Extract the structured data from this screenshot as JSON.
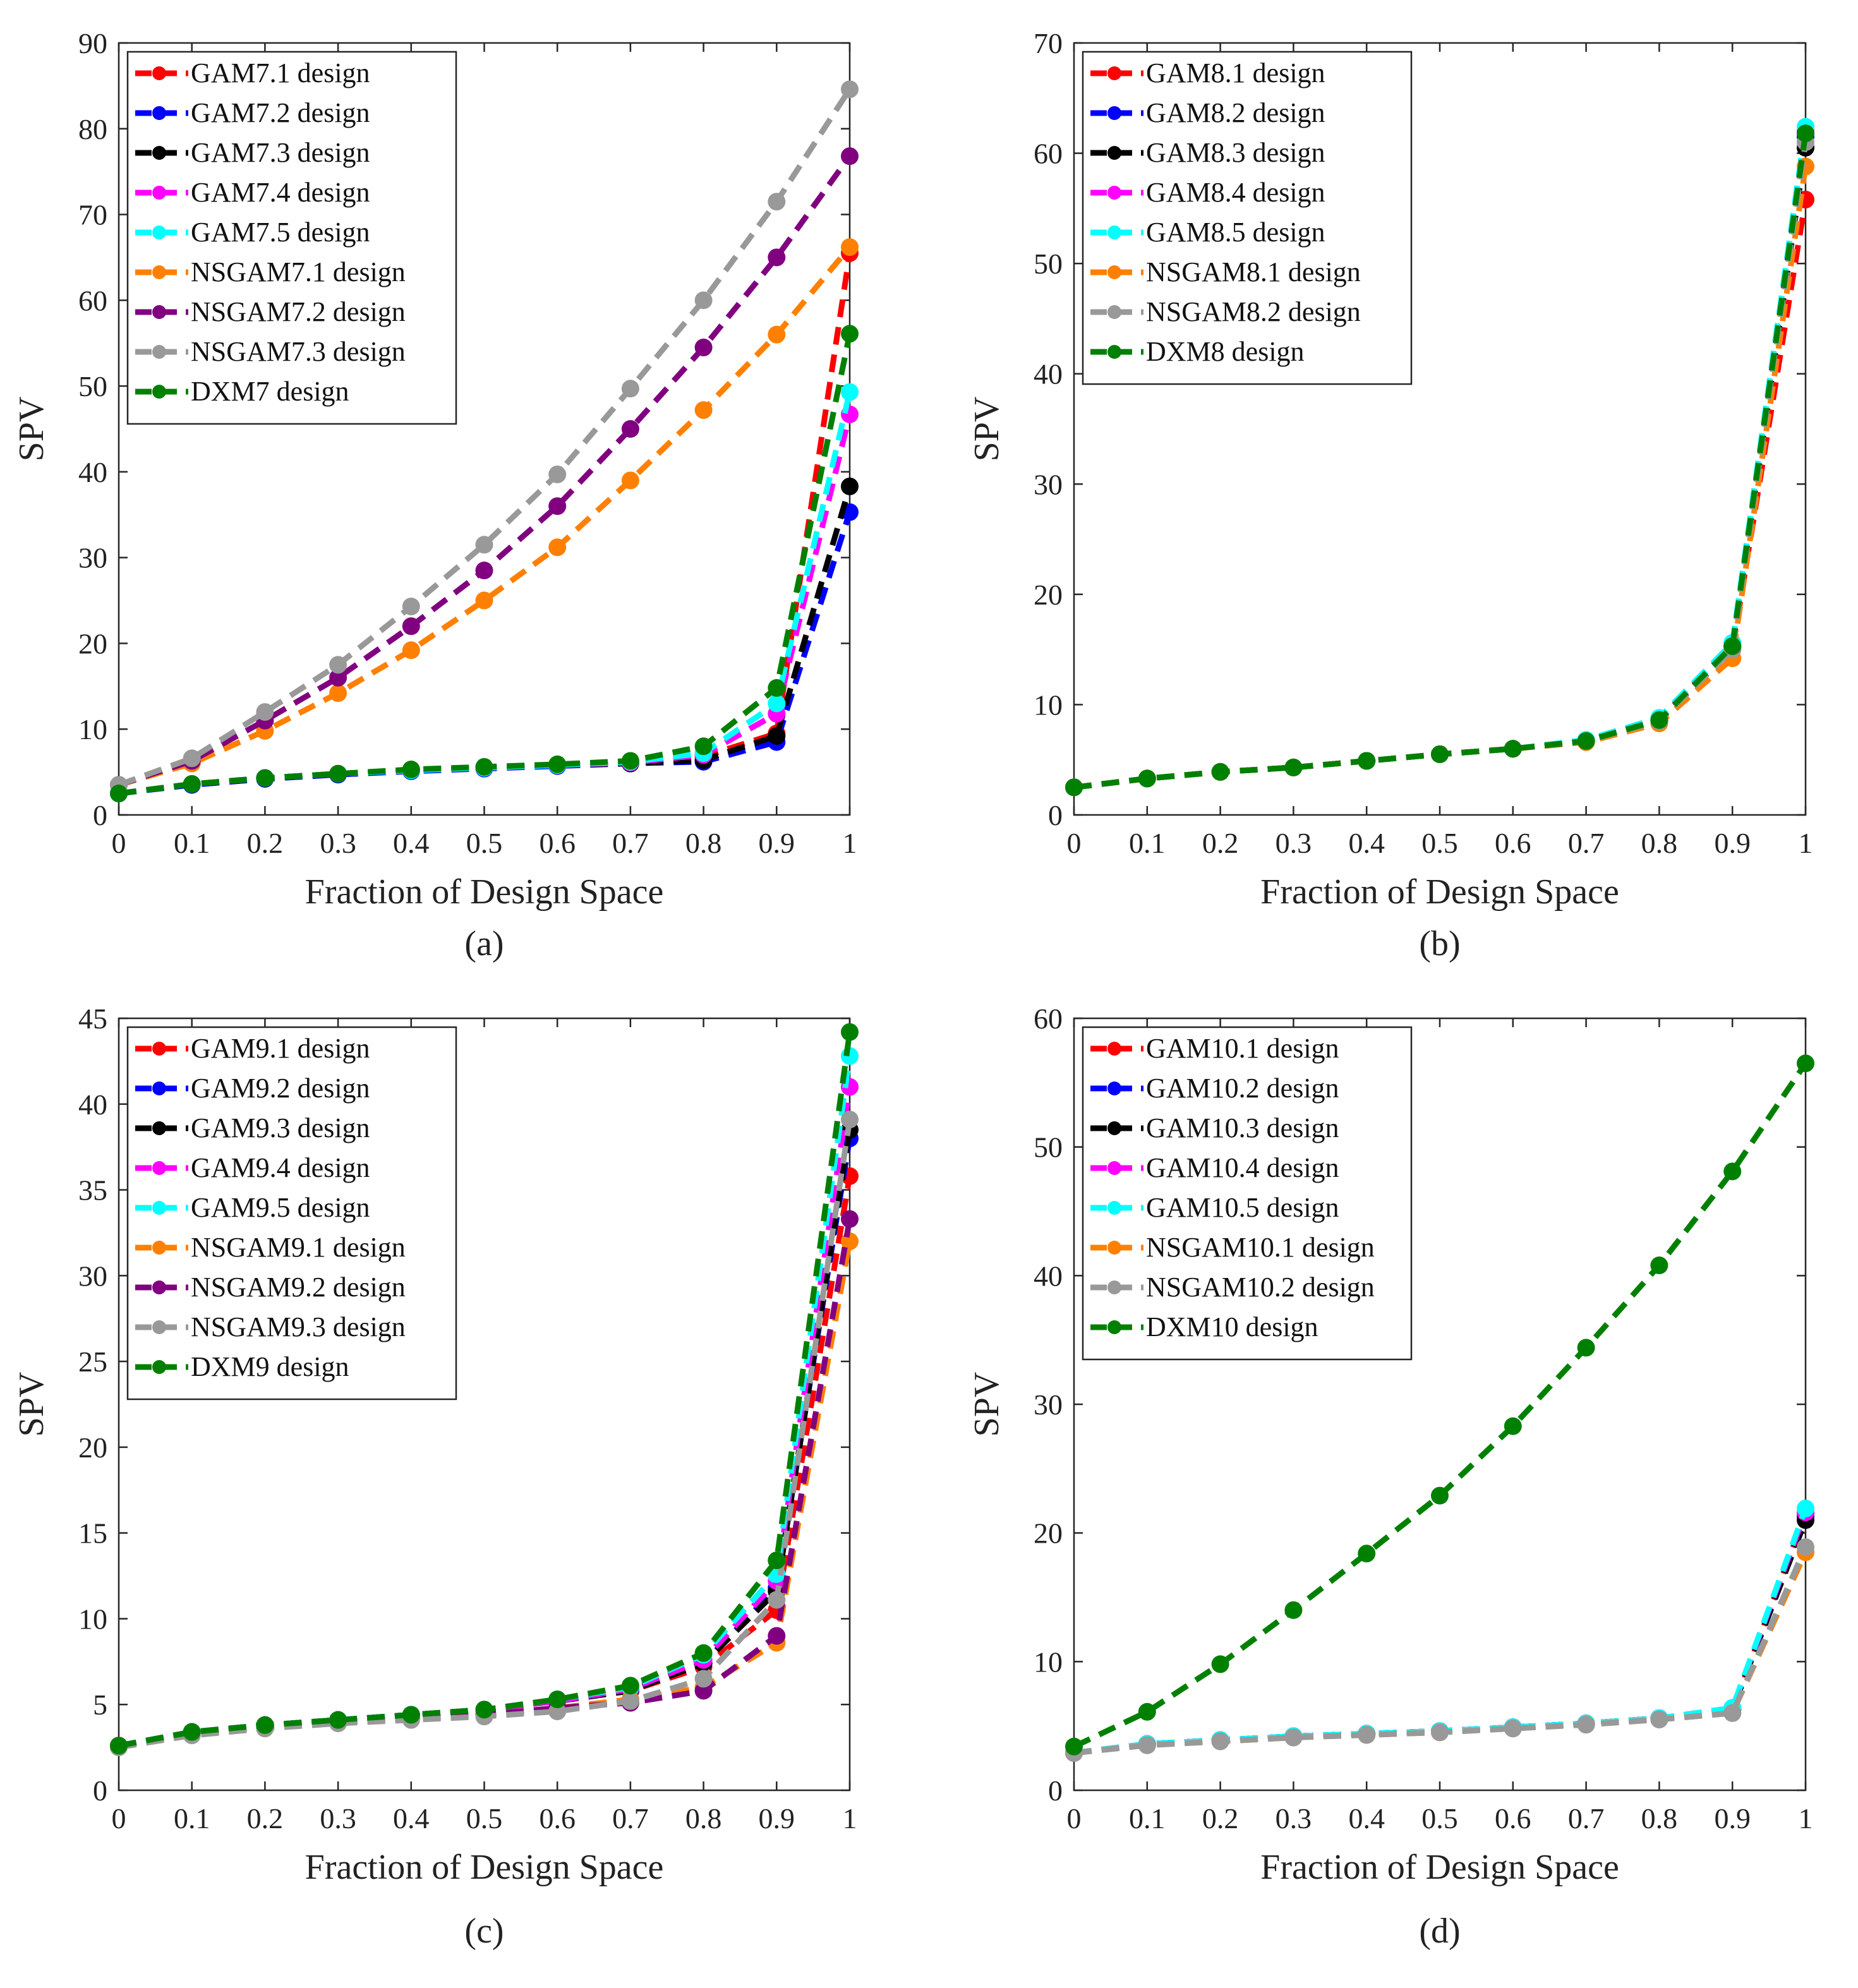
{
  "figure": {
    "domain_note": "Four SPV curves versus fraction of design space"
  },
  "chart_data": [
    {
      "type": "line",
      "caption": "(a)",
      "xlabel": "Fraction of Design Space",
      "ylabel": "SPV",
      "xlim": [
        0,
        1
      ],
      "ylim": [
        0,
        90
      ],
      "xticks": [
        0,
        0.1,
        0.2,
        0.3,
        0.4,
        0.5,
        0.6,
        0.7,
        0.8,
        0.9,
        1
      ],
      "xtick_labels": [
        "0",
        "0.1",
        "0.2",
        "0.3",
        "0.4",
        "0.5",
        "0.6",
        "0.7",
        "0.8",
        "0.9",
        "1"
      ],
      "yticks": [
        0,
        10,
        20,
        30,
        40,
        50,
        60,
        70,
        80,
        90
      ],
      "ytick_labels": [
        "0",
        "10",
        "20",
        "30",
        "40",
        "50",
        "60",
        "70",
        "80",
        "90"
      ],
      "legend_position": "top-left",
      "x": [
        0,
        0.1,
        0.2,
        0.3,
        0.4,
        0.5,
        0.6,
        0.7,
        0.8,
        0.9,
        1
      ],
      "series": [
        {
          "name": "GAM7.1 design",
          "color": "#ff0000",
          "values": [
            2.5,
            3.6,
            4.3,
            4.8,
            5.2,
            5.5,
            5.8,
            6.0,
            6.8,
            9.5,
            65.5
          ]
        },
        {
          "name": "GAM7.2 design",
          "color": "#0000ff",
          "values": [
            2.5,
            3.5,
            4.2,
            4.7,
            5.1,
            5.4,
            5.7,
            6.0,
            6.2,
            8.5,
            35.3
          ]
        },
        {
          "name": "GAM7.3 design",
          "color": "#000000",
          "values": [
            2.5,
            3.6,
            4.3,
            4.8,
            5.2,
            5.5,
            5.8,
            6.0,
            6.4,
            9.2,
            38.3
          ]
        },
        {
          "name": "GAM7.4 design",
          "color": "#ff00ff",
          "values": [
            2.5,
            3.6,
            4.3,
            4.8,
            5.2,
            5.5,
            5.8,
            6.1,
            7.0,
            11.8,
            46.7
          ]
        },
        {
          "name": "GAM7.5 design",
          "color": "#00ffff",
          "values": [
            2.5,
            3.6,
            4.3,
            4.8,
            5.2,
            5.5,
            5.8,
            6.2,
            7.2,
            13.0,
            49.3
          ]
        },
        {
          "name": "NSGAM7.1 design",
          "color": "#ff8000",
          "values": [
            3.5,
            6.0,
            9.8,
            14.2,
            19.2,
            25.0,
            31.2,
            39.0,
            47.2,
            56.0,
            66.2
          ]
        },
        {
          "name": "NSGAM7.2 design",
          "color": "#800080",
          "values": [
            3.5,
            6.3,
            11.0,
            16.0,
            22.0,
            28.5,
            36.0,
            45.0,
            54.5,
            65.0,
            76.8
          ]
        },
        {
          "name": "NSGAM7.3 design",
          "color": "#999999",
          "values": [
            3.5,
            6.6,
            12.0,
            17.5,
            24.3,
            31.5,
            39.7,
            49.7,
            60.0,
            71.5,
            84.6
          ]
        },
        {
          "name": "DXM7 design",
          "color": "#008000",
          "values": [
            2.5,
            3.6,
            4.3,
            4.8,
            5.3,
            5.6,
            5.9,
            6.3,
            8.0,
            14.8,
            56.1
          ]
        }
      ]
    },
    {
      "type": "line",
      "caption": "(b)",
      "xlabel": "Fraction of Design Space",
      "ylabel": "SPV",
      "xlim": [
        0,
        1
      ],
      "ylim": [
        0,
        70
      ],
      "xticks": [
        0,
        0.1,
        0.2,
        0.3,
        0.4,
        0.5,
        0.6,
        0.7,
        0.8,
        0.9,
        1
      ],
      "xtick_labels": [
        "0",
        "0.1",
        "0.2",
        "0.3",
        "0.4",
        "0.5",
        "0.6",
        "0.7",
        "0.8",
        "0.9",
        "1"
      ],
      "yticks": [
        0,
        10,
        20,
        30,
        40,
        50,
        60,
        70
      ],
      "ytick_labels": [
        "0",
        "10",
        "20",
        "30",
        "40",
        "50",
        "60",
        "70"
      ],
      "legend_position": "top-left",
      "x": [
        0,
        0.1,
        0.2,
        0.3,
        0.4,
        0.5,
        0.6,
        0.7,
        0.8,
        0.9,
        1
      ],
      "series": [
        {
          "name": "GAM8.1 design",
          "color": "#ff0000",
          "values": [
            2.5,
            3.3,
            3.9,
            4.3,
            4.9,
            5.5,
            6.0,
            6.7,
            8.6,
            15.0,
            55.8
          ]
        },
        {
          "name": "GAM8.2 design",
          "color": "#0000ff",
          "values": [
            2.5,
            3.3,
            3.9,
            4.3,
            4.9,
            5.5,
            6.0,
            6.7,
            8.6,
            15.2,
            61.5
          ]
        },
        {
          "name": "GAM8.3 design",
          "color": "#000000",
          "values": [
            2.5,
            3.3,
            3.9,
            4.3,
            4.9,
            5.5,
            6.0,
            6.7,
            8.6,
            15.3,
            60.5
          ]
        },
        {
          "name": "GAM8.4 design",
          "color": "#ff00ff",
          "values": [
            2.5,
            3.3,
            3.9,
            4.3,
            4.9,
            5.5,
            6.0,
            6.7,
            8.7,
            15.4,
            62.0
          ]
        },
        {
          "name": "GAM8.5 design",
          "color": "#00ffff",
          "values": [
            2.5,
            3.3,
            3.9,
            4.3,
            4.9,
            5.5,
            6.0,
            6.8,
            8.8,
            15.6,
            62.4
          ]
        },
        {
          "name": "NSGAM8.1 design",
          "color": "#ff8000",
          "values": [
            2.5,
            3.3,
            3.9,
            4.3,
            4.9,
            5.5,
            6.0,
            6.6,
            8.3,
            14.2,
            58.8
          ]
        },
        {
          "name": "NSGAM8.2 design",
          "color": "#999999",
          "values": [
            2.5,
            3.3,
            3.9,
            4.3,
            4.9,
            5.5,
            6.0,
            6.7,
            8.5,
            15.0,
            61.0
          ]
        },
        {
          "name": "DXM8 design",
          "color": "#008000",
          "values": [
            2.5,
            3.3,
            3.9,
            4.3,
            4.9,
            5.5,
            6.0,
            6.7,
            8.6,
            15.3,
            61.8
          ]
        }
      ]
    },
    {
      "type": "line",
      "caption": "(c)",
      "xlabel": "Fraction of Design Space",
      "ylabel": "SPV",
      "xlim": [
        0,
        1
      ],
      "ylim": [
        0,
        45
      ],
      "xticks": [
        0,
        0.1,
        0.2,
        0.3,
        0.4,
        0.5,
        0.6,
        0.7,
        0.8,
        0.9,
        1
      ],
      "xtick_labels": [
        "0",
        "0.1",
        "0.2",
        "0.3",
        "0.4",
        "0.5",
        "0.6",
        "0.7",
        "0.8",
        "0.9",
        "1"
      ],
      "yticks": [
        0,
        5,
        10,
        15,
        20,
        25,
        30,
        35,
        40,
        45
      ],
      "ytick_labels": [
        "0",
        "5",
        "10",
        "15",
        "20",
        "25",
        "30",
        "35",
        "40",
        "45"
      ],
      "legend_position": "top-left",
      "x": [
        0,
        0.1,
        0.2,
        0.3,
        0.4,
        0.5,
        0.6,
        0.7,
        0.8,
        0.9,
        1
      ],
      "series": [
        {
          "name": "GAM9.1 design",
          "color": "#ff0000",
          "values": [
            2.6,
            3.4,
            3.8,
            4.1,
            4.4,
            4.7,
            5.2,
            5.8,
            7.2,
            10.5,
            35.8
          ]
        },
        {
          "name": "GAM9.2 design",
          "color": "#0000ff",
          "values": [
            2.6,
            3.4,
            3.8,
            4.1,
            4.4,
            4.7,
            5.2,
            5.8,
            7.4,
            11.8,
            38.0
          ]
        },
        {
          "name": "GAM9.3 design",
          "color": "#000000",
          "values": [
            2.6,
            3.4,
            3.8,
            4.1,
            4.4,
            4.7,
            5.2,
            5.8,
            7.4,
            11.6,
            38.5
          ]
        },
        {
          "name": "GAM9.4 design",
          "color": "#ff00ff",
          "values": [
            2.6,
            3.4,
            3.8,
            4.1,
            4.4,
            4.7,
            5.2,
            5.9,
            7.6,
            12.2,
            41.0
          ]
        },
        {
          "name": "GAM9.5 design",
          "color": "#00ffff",
          "values": [
            2.6,
            3.4,
            3.8,
            4.1,
            4.4,
            4.7,
            5.3,
            6.0,
            7.9,
            12.6,
            42.8
          ]
        },
        {
          "name": "NSGAM9.1 design",
          "color": "#ff8000",
          "values": [
            2.6,
            3.3,
            3.7,
            4.0,
            4.2,
            4.4,
            4.8,
            5.3,
            6.0,
            8.6,
            32.0
          ]
        },
        {
          "name": "NSGAM9.2 design",
          "color": "#800080",
          "values": [
            2.6,
            3.3,
            3.7,
            4.0,
            4.2,
            4.4,
            4.8,
            5.1,
            5.8,
            9.0,
            33.3
          ]
        },
        {
          "name": "NSGAM9.3 design",
          "color": "#999999",
          "values": [
            2.5,
            3.2,
            3.6,
            3.9,
            4.1,
            4.3,
            4.6,
            5.2,
            6.5,
            11.1,
            39.1
          ]
        },
        {
          "name": "DXM9 design",
          "color": "#008000",
          "values": [
            2.6,
            3.4,
            3.8,
            4.1,
            4.4,
            4.7,
            5.3,
            6.1,
            8.0,
            13.4,
            44.2
          ]
        }
      ]
    },
    {
      "type": "line",
      "caption": "(d)",
      "xlabel": "Fraction of Design Space",
      "ylabel": "SPV",
      "xlim": [
        0,
        1
      ],
      "ylim": [
        0,
        60
      ],
      "xticks": [
        0,
        0.1,
        0.2,
        0.3,
        0.4,
        0.5,
        0.6,
        0.7,
        0.8,
        0.9,
        1
      ],
      "xtick_labels": [
        "0",
        "0.1",
        "0.2",
        "0.3",
        "0.4",
        "0.5",
        "0.6",
        "0.7",
        "0.8",
        "0.9",
        "1"
      ],
      "yticks": [
        0,
        10,
        20,
        30,
        40,
        50,
        60
      ],
      "ytick_labels": [
        "0",
        "10",
        "20",
        "30",
        "40",
        "50",
        "60"
      ],
      "legend_position": "top-left",
      "x": [
        0,
        0.1,
        0.2,
        0.3,
        0.4,
        0.5,
        0.6,
        0.7,
        0.8,
        0.9,
        1
      ],
      "series": [
        {
          "name": "GAM10.1 design",
          "color": "#ff0000",
          "values": [
            2.9,
            3.6,
            3.9,
            4.2,
            4.4,
            4.6,
            4.9,
            5.2,
            5.6,
            6.2,
            21.5
          ]
        },
        {
          "name": "GAM10.2 design",
          "color": "#0000ff",
          "values": [
            2.9,
            3.6,
            3.9,
            4.2,
            4.4,
            4.6,
            4.9,
            5.2,
            5.6,
            6.3,
            21.3
          ]
        },
        {
          "name": "GAM10.3 design",
          "color": "#000000",
          "values": [
            2.9,
            3.6,
            3.9,
            4.2,
            4.4,
            4.6,
            4.9,
            5.2,
            5.6,
            6.3,
            21.0
          ]
        },
        {
          "name": "GAM10.4 design",
          "color": "#ff00ff",
          "values": [
            2.9,
            3.6,
            3.9,
            4.2,
            4.4,
            4.6,
            4.9,
            5.2,
            5.6,
            6.4,
            21.6
          ]
        },
        {
          "name": "GAM10.5 design",
          "color": "#00ffff",
          "values": [
            2.9,
            3.6,
            3.9,
            4.2,
            4.4,
            4.6,
            4.9,
            5.2,
            5.6,
            6.4,
            21.9
          ]
        },
        {
          "name": "NSGAM10.1 design",
          "color": "#ff8000",
          "values": [
            2.9,
            3.5,
            3.8,
            4.1,
            4.3,
            4.5,
            4.8,
            5.1,
            5.5,
            6.0,
            18.5
          ]
        },
        {
          "name": "NSGAM10.2 design",
          "color": "#999999",
          "values": [
            2.9,
            3.5,
            3.8,
            4.1,
            4.3,
            4.5,
            4.8,
            5.1,
            5.5,
            6.0,
            18.9
          ]
        },
        {
          "name": "DXM10 design",
          "color": "#008000",
          "values": [
            3.4,
            6.1,
            9.8,
            14.0,
            18.4,
            22.9,
            28.3,
            34.4,
            40.8,
            48.1,
            56.5
          ]
        }
      ]
    }
  ]
}
